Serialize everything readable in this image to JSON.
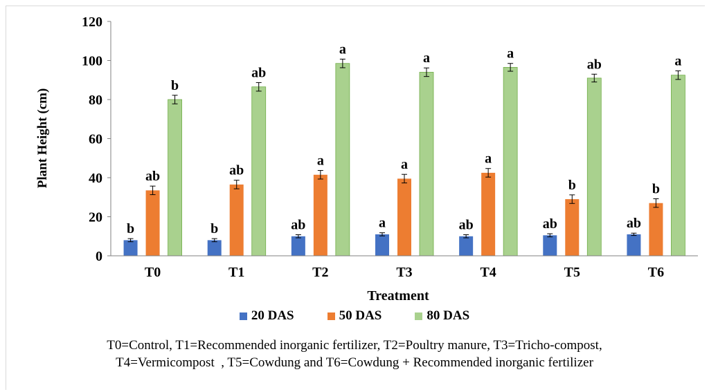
{
  "chart_data": {
    "type": "bar",
    "categories": [
      "T0",
      "T1",
      "T2",
      "T3",
      "T4",
      "T5",
      "T6"
    ],
    "series": [
      {
        "name": "20 DAS",
        "color": "#4472c4",
        "values": [
          8,
          8,
          10,
          11,
          10,
          10.5,
          11
        ],
        "errors": [
          0.8,
          0.8,
          0.8,
          0.8,
          0.8,
          0.8,
          0.6
        ],
        "labels": [
          "b",
          "b",
          "ab",
          "a",
          "ab",
          "ab",
          "ab"
        ]
      },
      {
        "name": "50 DAS",
        "color": "#ed7d31",
        "values": [
          33.5,
          36.5,
          41.5,
          39.5,
          42.5,
          29,
          27
        ],
        "errors": [
          2.2,
          2.2,
          2.2,
          2.2,
          2.2,
          2.2,
          2.2
        ],
        "labels": [
          "ab",
          "ab",
          "a",
          "a",
          "a",
          "b",
          "b"
        ]
      },
      {
        "name": "80 DAS",
        "color": "#a9d18e",
        "values": [
          80,
          86.5,
          98.5,
          94,
          96.5,
          91,
          92.5
        ],
        "errors": [
          2.2,
          2.2,
          2.2,
          2.2,
          2.0,
          2.0,
          2.2
        ],
        "labels": [
          "b",
          "ab",
          "a",
          "a",
          "a",
          "ab",
          "a"
        ]
      }
    ],
    "xlabel": "Treatment",
    "ylabel": "Plant Height (cm)",
    "ylim": [
      0,
      120
    ],
    "yticks": [
      "0",
      "20",
      "40",
      "60",
      "80",
      "100",
      "120"
    ],
    "grid": false,
    "legend_position": "bottom"
  },
  "caption": {
    "line1": "T0=Control, T1=Recommended inorganic fertilizer, T2=Poultry manure, T3=Tricho-compost,",
    "line2": "T4=Vermicompost  , T5=Cowdung and T6=Cowdung + Recommended inorganic fertilizer"
  }
}
